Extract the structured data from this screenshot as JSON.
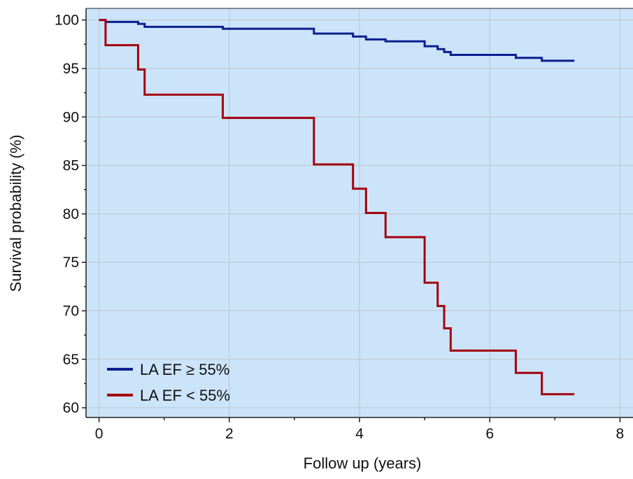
{
  "chart_data": {
    "type": "line",
    "step": true,
    "xlabel": "Follow up (years)",
    "ylabel": "Survival probability (%)",
    "xlim": [
      -0.2,
      8.2
    ],
    "ylim": [
      59,
      101.2
    ],
    "xticks": [
      0,
      2,
      4,
      6,
      8
    ],
    "yticks": [
      60,
      65,
      70,
      75,
      80,
      85,
      90,
      95,
      100
    ],
    "grid": true,
    "legend_position": "bottom-left",
    "background_color": "#cce4fa",
    "series": [
      {
        "name": "LA EF ≥ 55%",
        "color": "#0b1f8f",
        "points": [
          [
            0,
            100
          ],
          [
            0.1,
            99.8
          ],
          [
            0.6,
            99.6
          ],
          [
            0.7,
            99.3
          ],
          [
            1.9,
            99.1
          ],
          [
            3.3,
            98.6
          ],
          [
            3.9,
            98.3
          ],
          [
            4.1,
            98.0
          ],
          [
            4.4,
            97.8
          ],
          [
            5.0,
            97.3
          ],
          [
            5.2,
            97.0
          ],
          [
            5.3,
            96.7
          ],
          [
            5.4,
            96.4
          ],
          [
            6.4,
            96.1
          ],
          [
            6.8,
            95.8
          ],
          [
            7.3,
            95.8
          ]
        ]
      },
      {
        "name": "LA EF < 55%",
        "color": "#a3000b",
        "points": [
          [
            0,
            100
          ],
          [
            0.1,
            97.4
          ],
          [
            0.6,
            94.9
          ],
          [
            0.7,
            92.3
          ],
          [
            1.9,
            89.9
          ],
          [
            3.3,
            85.1
          ],
          [
            3.9,
            82.6
          ],
          [
            4.1,
            80.1
          ],
          [
            4.4,
            77.6
          ],
          [
            5.0,
            72.9
          ],
          [
            5.2,
            70.5
          ],
          [
            5.3,
            68.2
          ],
          [
            5.4,
            65.9
          ],
          [
            6.4,
            63.6
          ],
          [
            6.8,
            61.4
          ],
          [
            7.3,
            61.4
          ]
        ]
      }
    ]
  }
}
